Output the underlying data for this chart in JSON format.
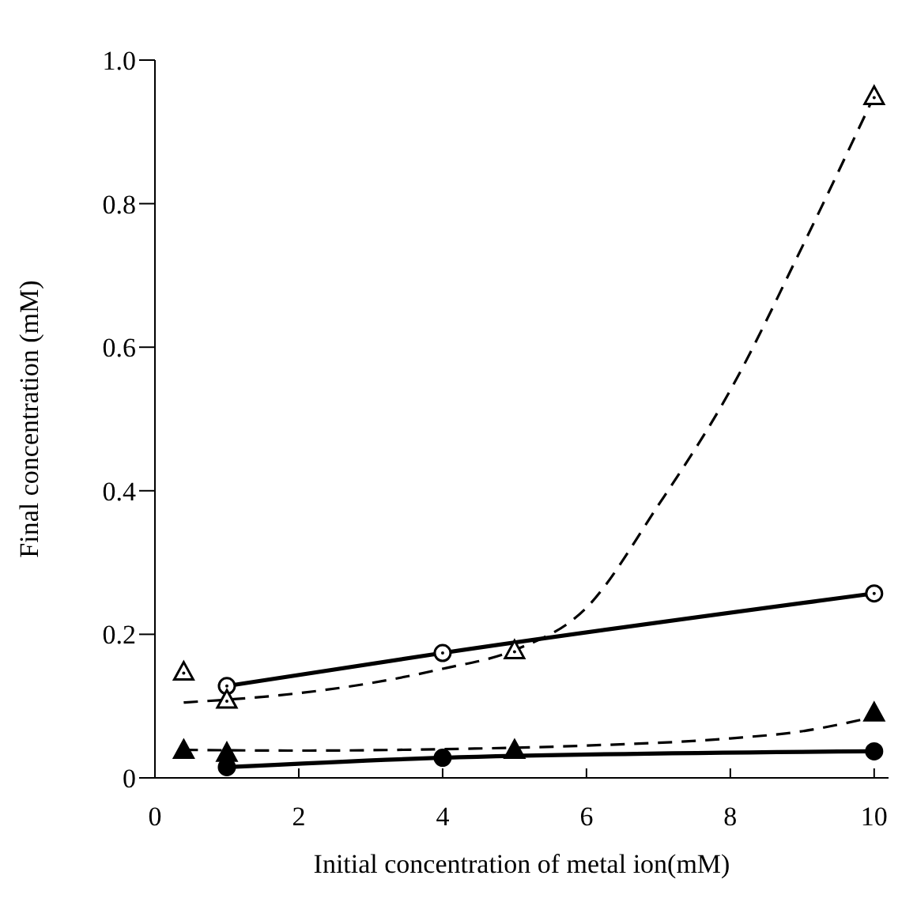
{
  "chart_data": {
    "type": "line",
    "xlabel": "Initial concentration of metal ion(mM)",
    "ylabel": "Final concentration (mM)",
    "xlim": [
      0,
      10.2
    ],
    "xticks": [
      0,
      2,
      4,
      6,
      8,
      10
    ],
    "ylim": [
      0,
      1.0
    ],
    "yticks": [
      0,
      0.2,
      0.4,
      0.6,
      {
        "value": 0.8,
        "label": "0.8"
      },
      {
        "value": 1.0,
        "label": "1.0"
      }
    ],
    "grid": false,
    "legend": false,
    "line_style": "solid",
    "series": [
      {
        "color": "#000000",
        "colors": [
          "#ffffff",
          "#ffffff",
          "#ffffff"
        ],
        "x": [
          1,
          4,
          10
        ],
        "values": [
          0.128,
          0.174,
          0.257
        ],
        "marker": "circle"
      },
      {
        "color": "#000000",
        "x": [
          1,
          4,
          10
        ],
        "values": [
          0.015,
          0.028,
          0.037
        ],
        "marker": "circle"
      },
      {
        "color": "#000000",
        "line_style": "dashed",
        "marker": "none",
        "x": [
          0.4,
          2,
          3,
          4,
          5,
          6,
          7,
          8,
          9,
          10
        ],
        "values": [
          0.105,
          0.118,
          0.132,
          0.152,
          0.178,
          0.237,
          0.38,
          0.54,
          0.74,
          0.95
        ]
      },
      {
        "type": "scatter",
        "color": "#000000",
        "colors": [
          "#ffffff",
          "#ffffff",
          "#ffffff",
          "#ffffff"
        ],
        "x": [
          0.4,
          1,
          5,
          10
        ],
        "values": [
          0.148,
          0.109,
          0.178,
          0.95
        ],
        "marker": "triangle"
      },
      {
        "color": "#000000",
        "line_style": "dashed",
        "marker": "none",
        "x": [
          0.4,
          2,
          4,
          6,
          8,
          9,
          10
        ],
        "values": [
          0.039,
          0.038,
          0.04,
          0.045,
          0.055,
          0.065,
          0.085
        ]
      },
      {
        "type": "scatter",
        "color": "#000000",
        "x": [
          0.4,
          1,
          5,
          10
        ],
        "values": [
          0.039,
          0.035,
          0.039,
          0.091
        ],
        "marker": "triangle"
      }
    ]
  }
}
